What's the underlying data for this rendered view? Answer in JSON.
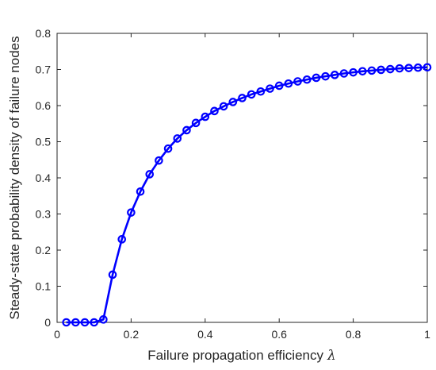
{
  "chart_data": {
    "type": "line",
    "title": "",
    "xlabel": "Failure propagation efficiency",
    "xlabel_symbol": "λ",
    "ylabel": "Steady-state probability density of failure nodes",
    "xlim": [
      0,
      1
    ],
    "ylim": [
      0,
      0.8
    ],
    "xticks": [
      "0",
      "0.2",
      "0.4",
      "0.6",
      "0.8",
      "1"
    ],
    "yticks": [
      "0",
      "0.1",
      "0.2",
      "0.3",
      "0.4",
      "0.5",
      "0.6",
      "0.7",
      "0.8"
    ],
    "grid": false,
    "legend": "none",
    "marker": "circle",
    "series": [
      {
        "color": "#0000ff",
        "x": [
          0.025,
          0.05,
          0.075,
          0.1,
          0.125,
          0.15,
          0.175,
          0.2,
          0.225,
          0.25,
          0.275,
          0.3,
          0.325,
          0.35,
          0.375,
          0.4,
          0.425,
          0.45,
          0.475,
          0.5,
          0.525,
          0.55,
          0.575,
          0.6,
          0.625,
          0.65,
          0.675,
          0.7,
          0.725,
          0.75,
          0.775,
          0.8,
          0.825,
          0.85,
          0.875,
          0.9,
          0.925,
          0.95,
          0.975,
          1.0
        ],
        "y": [
          0,
          0,
          0,
          0,
          0.008,
          0.132,
          0.23,
          0.304,
          0.362,
          0.41,
          0.448,
          0.481,
          0.509,
          0.532,
          0.552,
          0.569,
          0.585,
          0.598,
          0.61,
          0.621,
          0.631,
          0.639,
          0.647,
          0.655,
          0.661,
          0.667,
          0.672,
          0.677,
          0.681,
          0.685,
          0.689,
          0.692,
          0.695,
          0.697,
          0.699,
          0.701,
          0.703,
          0.704,
          0.705,
          0.706
        ]
      }
    ]
  }
}
